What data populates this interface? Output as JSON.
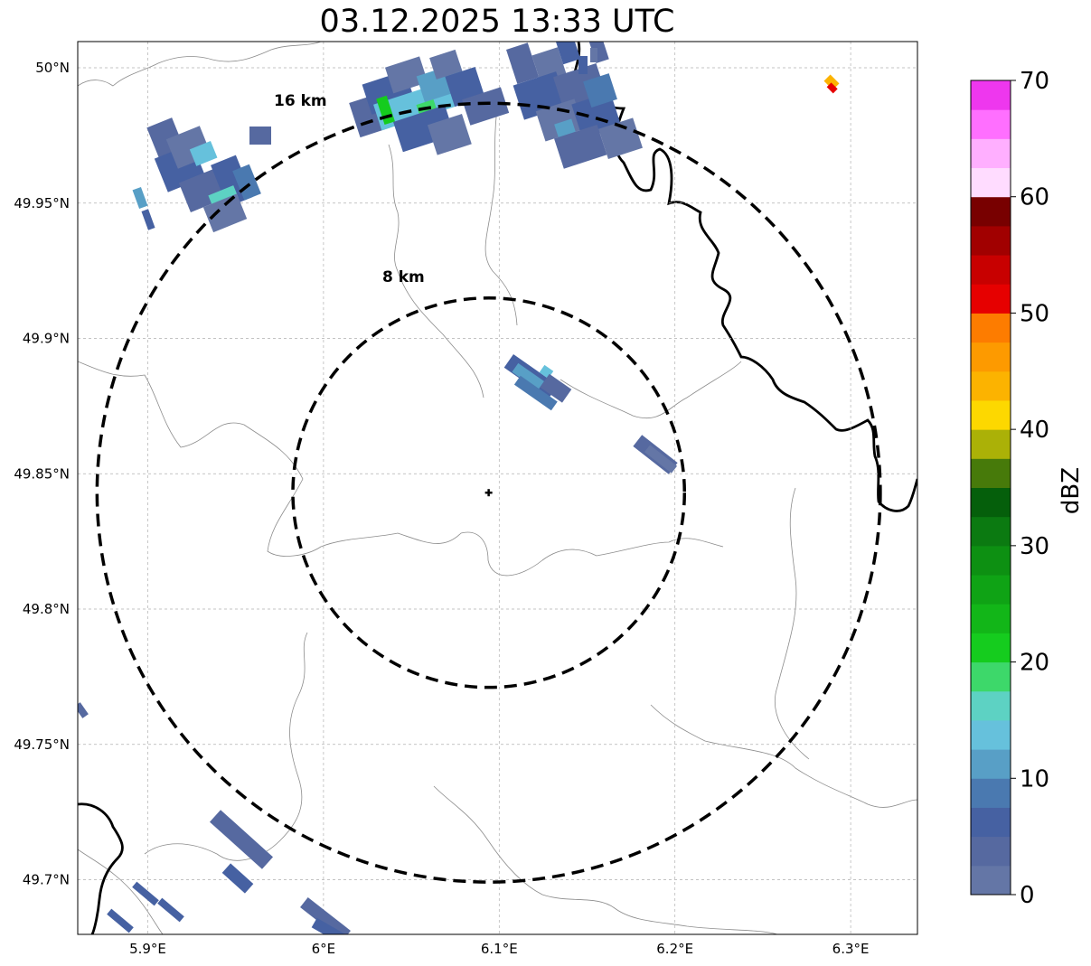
{
  "title": "03.12.2025 13:33 UTC",
  "map": {
    "lon_range": [
      5.86,
      6.34
    ],
    "lat_range": [
      49.68,
      50.01
    ],
    "gridlines": true,
    "lon_ticks": [
      {
        "value": 5.9,
        "label": "5.9°E"
      },
      {
        "value": 6.0,
        "label": "6°E"
      },
      {
        "value": 6.1,
        "label": "6.1°E"
      },
      {
        "value": 6.2,
        "label": "6.2°E"
      },
      {
        "value": 6.3,
        "label": "6.3°E"
      }
    ],
    "lat_ticks": [
      {
        "value": 50.0,
        "label": "50°N"
      },
      {
        "value": 49.95,
        "label": "49.95°N"
      },
      {
        "value": 49.9,
        "label": "49.9°N"
      },
      {
        "value": 49.85,
        "label": "49.85°N"
      },
      {
        "value": 49.8,
        "label": "49.8°N"
      },
      {
        "value": 49.75,
        "label": "49.75°N"
      },
      {
        "value": 49.7,
        "label": "49.7°N"
      }
    ],
    "radar_center": {
      "lon": 6.094,
      "lat": 49.843
    },
    "range_rings": [
      {
        "radius_km": 8,
        "label": "8 km"
      },
      {
        "radius_km": 16,
        "label": "16 km"
      }
    ]
  },
  "colorbar": {
    "label": "dBZ",
    "min": 0,
    "max": 70,
    "step": 2.5,
    "ticks": [
      {
        "value": 0,
        "label": "0"
      },
      {
        "value": 10,
        "label": "10"
      },
      {
        "value": 20,
        "label": "20"
      },
      {
        "value": 30,
        "label": "30"
      },
      {
        "value": 40,
        "label": "40"
      },
      {
        "value": 50,
        "label": "50"
      },
      {
        "value": 60,
        "label": "60"
      },
      {
        "value": 70,
        "label": "70"
      }
    ],
    "colors": [
      "#6476a6",
      "#5669a0",
      "#4661a2",
      "#4a79b0",
      "#589fc6",
      "#66c1dc",
      "#5dd2c3",
      "#3dd86a",
      "#15cc1e",
      "#12b618",
      "#0fa315",
      "#0d9012",
      "#0b7a11",
      "#055f0b",
      "#477a0a",
      "#abb107",
      "#fdd800",
      "#fcb300",
      "#fd9a00",
      "#fd7c00",
      "#e60000",
      "#c80000",
      "#a10000",
      "#780000",
      "#ffdcff",
      "#ffafff",
      "#ff6fff",
      "#ee37ee"
    ]
  }
}
